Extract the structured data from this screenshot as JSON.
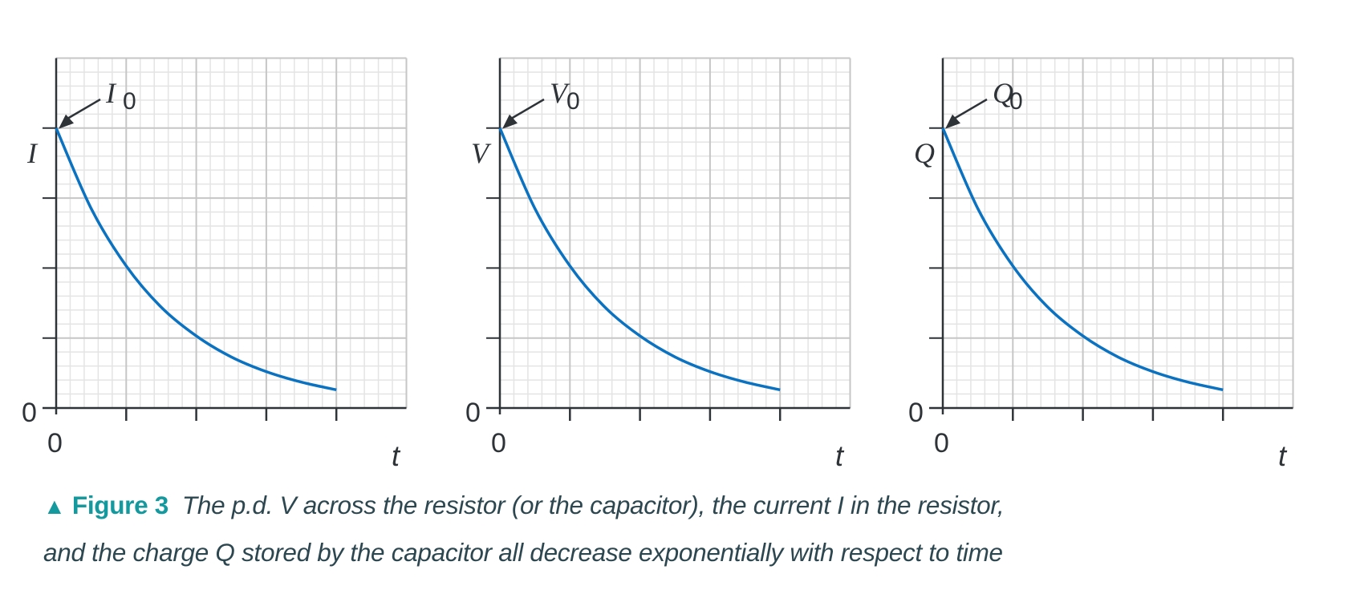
{
  "colors": {
    "curve": "#0a72c0",
    "axis": "#2e3338",
    "grid_major": "#c6c6c6",
    "grid_minor": "#e4e4e4",
    "caption": "#2d4750",
    "figure_label": "#14999e"
  },
  "chart_data": [
    {
      "type": "line",
      "xlabel": "t",
      "ylabel": "I",
      "annotation": {
        "symbol": "I",
        "subscript": "0"
      },
      "x_tick_labels": [
        "0"
      ],
      "y_tick_labels": [
        "0"
      ],
      "xlim": [
        0,
        5
      ],
      "ylim": [
        0,
        5
      ],
      "grid": true,
      "series": [
        {
          "x": [
            0,
            0.5,
            1,
            1.5,
            2,
            2.5,
            3,
            3.5,
            4
          ],
          "y": [
            4,
            2.85,
            2.03,
            1.44,
            1.03,
            0.73,
            0.52,
            0.37,
            0.26
          ]
        }
      ]
    },
    {
      "type": "line",
      "xlabel": "t",
      "ylabel": "V",
      "annotation": {
        "symbol": "V",
        "subscript": "0"
      },
      "x_tick_labels": [
        "0"
      ],
      "y_tick_labels": [
        "0"
      ],
      "xlim": [
        0,
        5
      ],
      "ylim": [
        0,
        5
      ],
      "grid": true,
      "series": [
        {
          "x": [
            0,
            0.5,
            1,
            1.5,
            2,
            2.5,
            3,
            3.5,
            4
          ],
          "y": [
            4,
            2.85,
            2.03,
            1.44,
            1.03,
            0.73,
            0.52,
            0.37,
            0.26
          ]
        }
      ]
    },
    {
      "type": "line",
      "xlabel": "t",
      "ylabel": "Q",
      "annotation": {
        "symbol": "Q",
        "subscript": "0"
      },
      "x_tick_labels": [
        "0"
      ],
      "y_tick_labels": [
        "0"
      ],
      "xlim": [
        0,
        5
      ],
      "ylim": [
        0,
        5
      ],
      "grid": true,
      "series": [
        {
          "x": [
            0,
            0.5,
            1,
            1.5,
            2,
            2.5,
            3,
            3.5,
            4
          ],
          "y": [
            4,
            2.85,
            2.03,
            1.44,
            1.03,
            0.73,
            0.52,
            0.37,
            0.26
          ]
        }
      ]
    }
  ],
  "caption": {
    "marker_icon": "triangle-up-icon",
    "figure_label": "Figure 3",
    "line1": "The p.d. V across the resistor (or the capacitor), the current I in the resistor,",
    "line2": "and the charge Q stored by the capacitor all decrease exponentially with respect to time"
  }
}
